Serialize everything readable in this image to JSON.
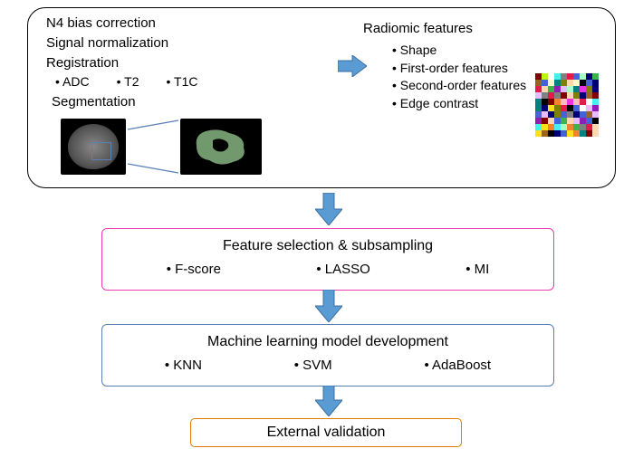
{
  "colors": {
    "arrow_fill": "#5a9bd4",
    "arrow_stroke": "#3d6fa3",
    "box_pink": "#ea3bb0",
    "box_blue": "#5a7fb8",
    "box_orange": "#e07b00",
    "roi_green": "#7ea87a"
  },
  "top": {
    "preprocess": [
      "N4 bias correction",
      "Signal normalization",
      "Registration"
    ],
    "reg_items": [
      "ADC",
      "T2",
      "T1C"
    ],
    "segmentation_label": "Segmentation",
    "radiomic_title": "Radiomic features",
    "radiomic_items": [
      "Shape",
      "First-order features",
      "Second-order features",
      "Edge contrast"
    ]
  },
  "feature_selection": {
    "title": "Feature selection & subsampling",
    "items": [
      "F-score",
      "LASSO",
      "MI"
    ]
  },
  "ml_model": {
    "title": "Machine learning model development",
    "items": [
      "KNN",
      "SVM",
      "AdaBoost"
    ]
  },
  "external_validation": "External validation",
  "heatmap_palette": [
    "#e6194b",
    "#3cb44b",
    "#ffe119",
    "#4363d8",
    "#f58231",
    "#911eb4",
    "#46f0f0",
    "#f032e6",
    "#bcf60c",
    "#fabebe",
    "#008080",
    "#e6beff",
    "#9a6324",
    "#fffac8",
    "#800000",
    "#aaffc3",
    "#808000",
    "#ffd8b1",
    "#000075",
    "#808080",
    "#ffffff",
    "#000000"
  ]
}
